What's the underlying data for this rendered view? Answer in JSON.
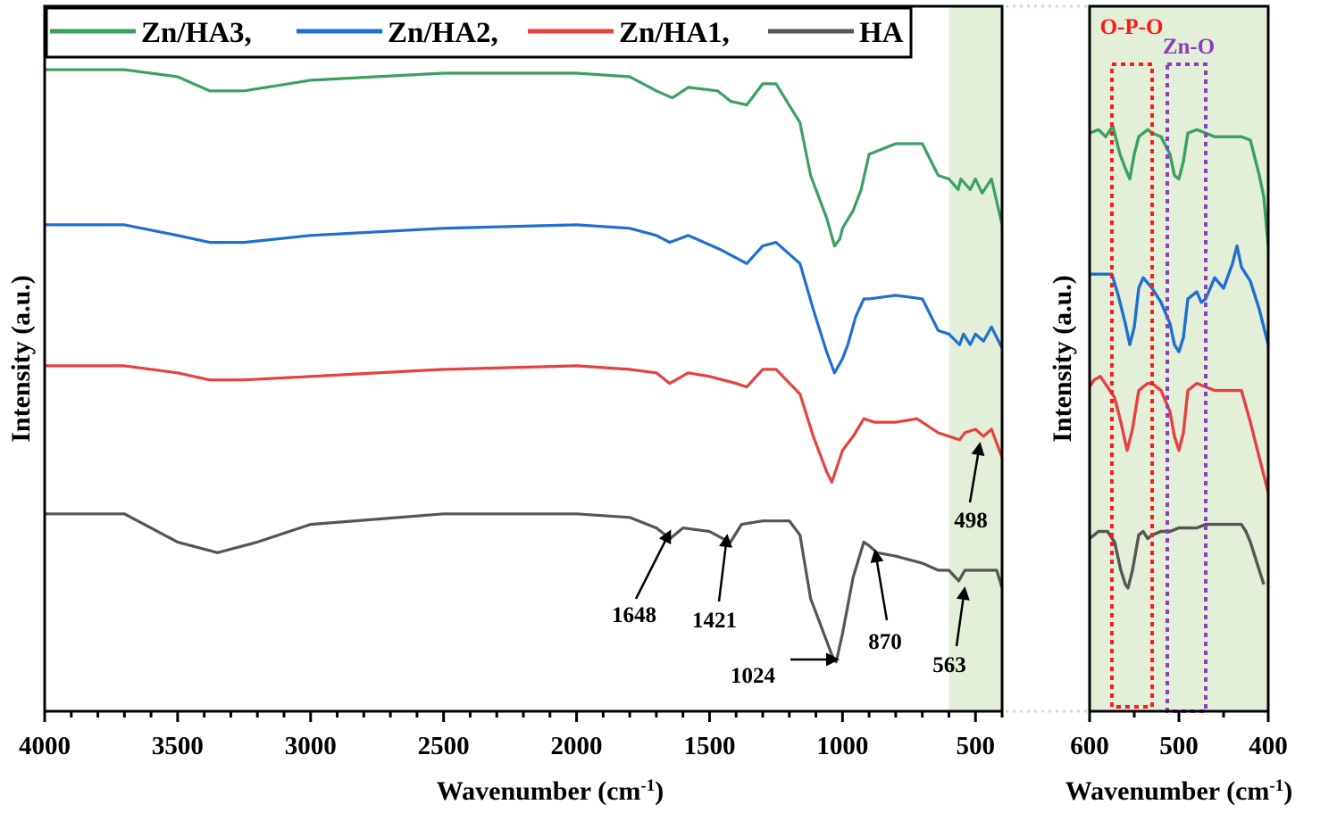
{
  "colors": {
    "Zn/HA3": "#3aa163",
    "Zn/HA2": "#1f6fd0",
    "Zn/HA1": "#e8403f",
    "HA": "#555555",
    "highlight": "#e3efd8",
    "opo_box": "#ff1a1a",
    "zno_box": "#8a3fbf"
  },
  "chart_data": [
    {
      "type": "line",
      "xlabel": "Wavenumber (cm",
      "xlabel_sup": "-1",
      "xlabel_close": ")",
      "ylabel": "Intensity (a.u.)",
      "xlim": [
        4000,
        400
      ],
      "x_ticks": [
        "4000",
        "3500",
        "3000",
        "2500",
        "2000",
        "1500",
        "1000",
        "500"
      ],
      "x_tick_values": [
        4000,
        3500,
        3000,
        2500,
        2000,
        1500,
        1000,
        500
      ],
      "y_ticks": "none",
      "grid": false,
      "legend_position": "top-left",
      "highlight_region": [
        600,
        400
      ],
      "legend": [
        "Zn/HA3,",
        "Zn/HA2,",
        "Zn/HA1,",
        "HA"
      ],
      "series": [
        {
          "name": "Zn/HA3",
          "color": "#3aa163",
          "x": [
            4000,
            3700,
            3500,
            3380,
            3250,
            3000,
            2500,
            2000,
            1800,
            1700,
            1640,
            1580,
            1470,
            1420,
            1360,
            1300,
            1250,
            1160,
            1120,
            1060,
            1030,
            1010,
            1000,
            960,
            930,
            900,
            800,
            700,
            640,
            600,
            565,
            555,
            520,
            500,
            475,
            440,
            400
          ],
          "y": [
            0.91,
            0.91,
            0.9,
            0.88,
            0.88,
            0.895,
            0.905,
            0.905,
            0.9,
            0.88,
            0.87,
            0.885,
            0.88,
            0.865,
            0.86,
            0.89,
            0.89,
            0.835,
            0.76,
            0.7,
            0.66,
            0.67,
            0.685,
            0.71,
            0.74,
            0.79,
            0.805,
            0.805,
            0.76,
            0.755,
            0.74,
            0.755,
            0.74,
            0.755,
            0.735,
            0.755,
            0.69
          ]
        },
        {
          "name": "Zn/HA2",
          "color": "#1f6fd0",
          "x": [
            4000,
            3700,
            3500,
            3380,
            3250,
            3000,
            2500,
            2000,
            1800,
            1700,
            1650,
            1580,
            1460,
            1360,
            1300,
            1250,
            1160,
            1110,
            1060,
            1030,
            1000,
            980,
            950,
            920,
            900,
            800,
            700,
            640,
            600,
            560,
            545,
            520,
            500,
            470,
            440,
            400
          ],
          "y": [
            0.69,
            0.69,
            0.675,
            0.665,
            0.665,
            0.675,
            0.685,
            0.69,
            0.685,
            0.675,
            0.665,
            0.675,
            0.655,
            0.635,
            0.66,
            0.665,
            0.635,
            0.57,
            0.51,
            0.48,
            0.5,
            0.52,
            0.56,
            0.585,
            0.585,
            0.59,
            0.585,
            0.54,
            0.535,
            0.52,
            0.535,
            0.52,
            0.535,
            0.525,
            0.545,
            0.515
          ]
        },
        {
          "name": "Zn/HA1",
          "color": "#e8403f",
          "x": [
            4000,
            3700,
            3500,
            3380,
            3250,
            3000,
            2500,
            2000,
            1800,
            1700,
            1650,
            1580,
            1500,
            1400,
            1360,
            1300,
            1250,
            1160,
            1110,
            1060,
            1040,
            1000,
            960,
            920,
            880,
            800,
            720,
            640,
            600,
            560,
            540,
            500,
            470,
            440,
            400
          ],
          "y": [
            0.49,
            0.49,
            0.48,
            0.47,
            0.47,
            0.475,
            0.485,
            0.49,
            0.485,
            0.48,
            0.465,
            0.48,
            0.475,
            0.465,
            0.46,
            0.485,
            0.485,
            0.45,
            0.39,
            0.34,
            0.325,
            0.37,
            0.39,
            0.415,
            0.41,
            0.41,
            0.415,
            0.395,
            0.39,
            0.385,
            0.395,
            0.4,
            0.39,
            0.4,
            0.36
          ]
        },
        {
          "name": "HA",
          "color": "#555555",
          "x": [
            4000,
            3700,
            3500,
            3350,
            3200,
            3000,
            2500,
            2000,
            1800,
            1700,
            1648,
            1600,
            1500,
            1450,
            1421,
            1380,
            1300,
            1200,
            1160,
            1120,
            1080,
            1040,
            1024,
            1000,
            960,
            920,
            900,
            870,
            800,
            700,
            640,
            600,
            563,
            540,
            500,
            470,
            440,
            420,
            400
          ],
          "y": [
            0.28,
            0.28,
            0.24,
            0.225,
            0.24,
            0.265,
            0.28,
            0.28,
            0.275,
            0.26,
            0.245,
            0.26,
            0.255,
            0.245,
            0.24,
            0.265,
            0.27,
            0.27,
            0.25,
            0.16,
            0.12,
            0.08,
            0.07,
            0.11,
            0.19,
            0.24,
            0.235,
            0.225,
            0.22,
            0.21,
            0.2,
            0.2,
            0.185,
            0.2,
            0.2,
            0.2,
            0.2,
            0.2,
            0.175
          ]
        }
      ],
      "annotations": [
        {
          "label": "1648"
        },
        {
          "label": "1421"
        },
        {
          "label": "1024"
        },
        {
          "label": "870"
        },
        {
          "label": "563"
        },
        {
          "label": "498"
        }
      ]
    },
    {
      "type": "line",
      "xlabel": "Wavenumber (cm",
      "xlabel_sup": "-1",
      "xlabel_close": ")",
      "ylabel": "Intensity (a.u.)",
      "xlim": [
        600,
        400
      ],
      "x_ticks": [
        "600",
        "500",
        "400"
      ],
      "x_tick_values": [
        600,
        500,
        400
      ],
      "y_ticks": "none",
      "grid": false,
      "region_labels": [
        "O-P-O",
        "Zn-O"
      ],
      "region_ranges": [
        [
          575,
          530
        ],
        [
          513,
          470
        ]
      ],
      "series": [
        {
          "name": "Zn/HA3",
          "color": "#3aa163",
          "x": [
            600,
            590,
            582,
            574,
            566,
            560,
            555,
            550,
            545,
            540,
            535,
            530,
            520,
            510,
            505,
            500,
            495,
            490,
            480,
            470,
            460,
            450,
            440,
            430,
            420,
            410,
            405,
            400
          ],
          "y": [
            0.82,
            0.825,
            0.815,
            0.83,
            0.79,
            0.77,
            0.755,
            0.79,
            0.815,
            0.82,
            0.825,
            0.82,
            0.815,
            0.79,
            0.76,
            0.755,
            0.78,
            0.82,
            0.825,
            0.82,
            0.815,
            0.815,
            0.815,
            0.815,
            0.81,
            0.76,
            0.73,
            0.66
          ]
        },
        {
          "name": "Zn/HA2",
          "color": "#1f6fd0",
          "x": [
            600,
            590,
            582,
            575,
            568,
            560,
            555,
            550,
            545,
            540,
            530,
            520,
            510,
            505,
            500,
            495,
            490,
            480,
            475,
            470,
            460,
            450,
            440,
            435,
            430,
            420,
            410,
            400
          ],
          "y": [
            0.62,
            0.62,
            0.62,
            0.62,
            0.59,
            0.55,
            0.52,
            0.545,
            0.6,
            0.615,
            0.6,
            0.58,
            0.55,
            0.52,
            0.51,
            0.53,
            0.585,
            0.595,
            0.58,
            0.585,
            0.615,
            0.6,
            0.635,
            0.66,
            0.63,
            0.61,
            0.57,
            0.52
          ]
        },
        {
          "name": "Zn/HA1",
          "color": "#e8403f",
          "x": [
            600,
            595,
            588,
            580,
            572,
            565,
            558,
            552,
            545,
            540,
            535,
            530,
            520,
            510,
            505,
            500,
            495,
            490,
            480,
            470,
            460,
            450,
            440,
            430,
            420,
            410,
            400
          ],
          "y": [
            0.46,
            0.47,
            0.475,
            0.46,
            0.445,
            0.41,
            0.37,
            0.4,
            0.455,
            0.46,
            0.465,
            0.465,
            0.455,
            0.425,
            0.39,
            0.37,
            0.395,
            0.455,
            0.465,
            0.46,
            0.455,
            0.455,
            0.455,
            0.455,
            0.41,
            0.36,
            0.31
          ]
        },
        {
          "name": "HA",
          "color": "#555555",
          "x": [
            600,
            595,
            590,
            580,
            572,
            565,
            560,
            557,
            552,
            545,
            540,
            535,
            530,
            520,
            510,
            500,
            490,
            480,
            470,
            460,
            450,
            440,
            430,
            425,
            420,
            415,
            410,
            405
          ],
          "y": [
            0.245,
            0.25,
            0.255,
            0.255,
            0.24,
            0.2,
            0.18,
            0.175,
            0.2,
            0.25,
            0.255,
            0.245,
            0.25,
            0.255,
            0.255,
            0.26,
            0.26,
            0.26,
            0.265,
            0.265,
            0.265,
            0.265,
            0.265,
            0.255,
            0.24,
            0.22,
            0.2,
            0.18
          ]
        }
      ]
    }
  ]
}
